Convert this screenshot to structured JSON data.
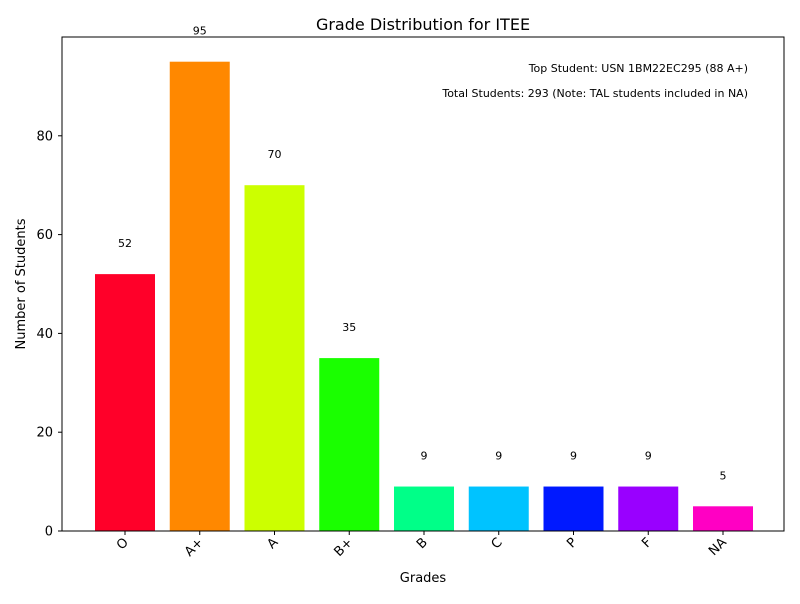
{
  "chart_data": {
    "type": "bar",
    "title": "Grade Distribution for ITEE",
    "xlabel": "Grades",
    "ylabel": "Number of Students",
    "categories": [
      "O",
      "A+",
      "A",
      "B+",
      "B",
      "C",
      "P",
      "F",
      "NA"
    ],
    "values": [
      52,
      95,
      70,
      35,
      9,
      9,
      9,
      9,
      5
    ],
    "data_labels": [
      "52",
      "95",
      "70",
      "35",
      "9",
      "9",
      "9",
      "9",
      "5"
    ],
    "colors": [
      "#ff0029",
      "#ff8800",
      "#ccff00",
      "#1aff00",
      "#00ff88",
      "#00c3ff",
      "#0019ff",
      "#9900ff",
      "#ff00c3"
    ],
    "ylim": [
      0,
      100
    ],
    "yticks": [
      0,
      20,
      40,
      60,
      80
    ],
    "ytick_labels": [
      "0",
      "20",
      "40",
      "60",
      "80"
    ],
    "grid": false,
    "legend": null,
    "annotations": [
      "Top Student: USN 1BM22EC295 (88 A+)",
      "Total Students: 293 (Note: TAL students included in NA)"
    ]
  }
}
